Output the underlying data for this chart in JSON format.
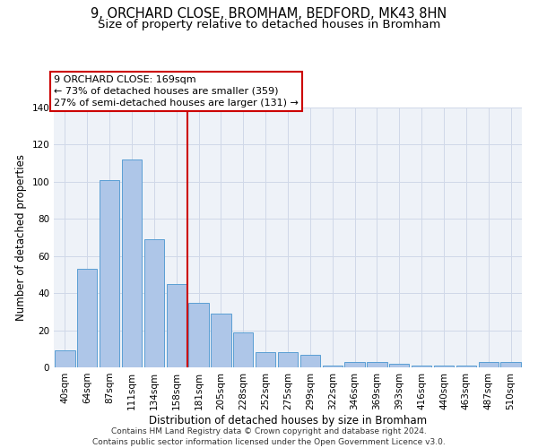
{
  "title_line1": "9, ORCHARD CLOSE, BROMHAM, BEDFORD, MK43 8HN",
  "title_line2": "Size of property relative to detached houses in Bromham",
  "xlabel": "Distribution of detached houses by size in Bromham",
  "ylabel": "Number of detached properties",
  "categories": [
    "40sqm",
    "64sqm",
    "87sqm",
    "111sqm",
    "134sqm",
    "158sqm",
    "181sqm",
    "205sqm",
    "228sqm",
    "252sqm",
    "275sqm",
    "299sqm",
    "322sqm",
    "346sqm",
    "369sqm",
    "393sqm",
    "416sqm",
    "440sqm",
    "463sqm",
    "487sqm",
    "510sqm"
  ],
  "values": [
    9,
    53,
    101,
    112,
    69,
    45,
    35,
    29,
    19,
    8,
    8,
    7,
    1,
    3,
    3,
    2,
    1,
    1,
    1,
    3,
    3
  ],
  "bar_color": "#aec6e8",
  "bar_edge_color": "#5a9fd4",
  "vline_x": 5.5,
  "vline_color": "#cc0000",
  "annotation_line1": "9 ORCHARD CLOSE: 169sqm",
  "annotation_line2": "← 73% of detached houses are smaller (359)",
  "annotation_line3": "27% of semi-detached houses are larger (131) →",
  "annotation_box_color": "#cc0000",
  "ylim": [
    0,
    140
  ],
  "yticks": [
    0,
    20,
    40,
    60,
    80,
    100,
    120,
    140
  ],
  "grid_color": "#d0d8e8",
  "background_color": "#eef2f8",
  "footer_line1": "Contains HM Land Registry data © Crown copyright and database right 2024.",
  "footer_line2": "Contains public sector information licensed under the Open Government Licence v3.0.",
  "title_fontsize": 10.5,
  "subtitle_fontsize": 9.5,
  "annotation_fontsize": 8,
  "axis_label_fontsize": 8.5,
  "tick_fontsize": 7.5,
  "footer_fontsize": 6.5
}
